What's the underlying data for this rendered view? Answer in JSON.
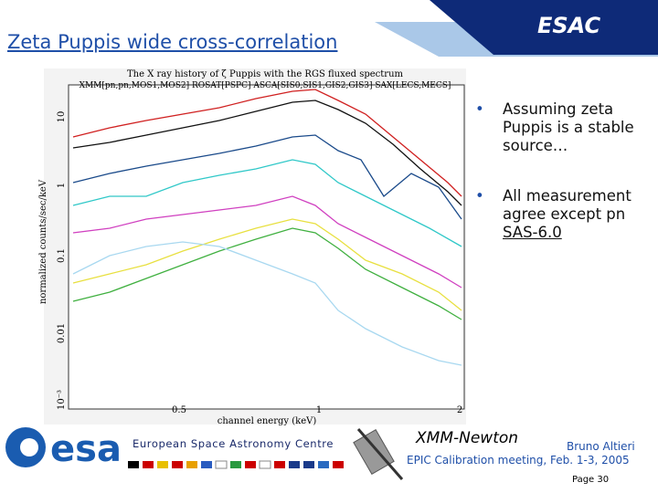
{
  "header": {
    "title": "Zeta Puppis wide cross-correlation",
    "badge": "ESAC"
  },
  "plot": {
    "title": "The X ray history of ζ Puppis with the RGS fluxed spectrum",
    "missions": "XMM[pn,pn,MOS1,MOS2]  ROSAT[PSPC]  ASCA[SIS0,SIS1,GIS2,GIS3]  SAX[LECS,MECS]",
    "y_label": "normalized counts/sec/keV",
    "x_label": "channel energy (keV)",
    "y_ticks": [
      "10",
      "1",
      "0.1",
      "0.01",
      "10⁻³"
    ],
    "x_ticks": [
      "0.5",
      "1",
      "2"
    ]
  },
  "bullets": [
    {
      "text": "Assuming zeta Puppis is a stable source…"
    },
    {
      "text": "All measurement agree except pn",
      "link": "SAS-6.0"
    }
  ],
  "footer": {
    "logo": "esa",
    "org": "European Space Astronomy Centre",
    "mission": "XMM-Newton",
    "author": "Bruno Altieri",
    "meeting": "EPIC Calibration meeting, Feb. 1-3, 2005",
    "page": "Page 30"
  }
}
